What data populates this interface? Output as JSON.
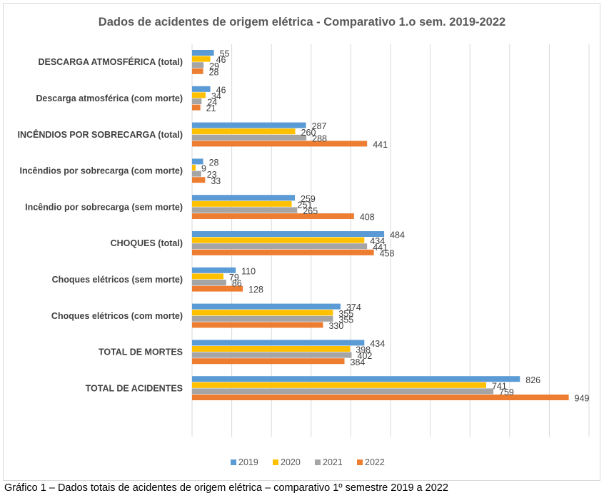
{
  "chart_data": {
    "type": "bar",
    "orientation": "horizontal",
    "title": "Dados de acidentes de origem elétrica - Comparativo 1.o sem. 2019-2022",
    "xlabel": "",
    "ylabel": "",
    "xlim": [
      0,
      1000
    ],
    "grid": true,
    "legend_position": "bottom",
    "categories": [
      "DESCARGA ATMOSFÉRICA (total)",
      "Descarga atmosférica (com morte)",
      "INCÊNDIOS POR SOBRECARGA (total)",
      "Incêndios por sobrecarga (com morte)",
      "Incêndio por sobrecarga (sem morte)",
      "CHOQUES (total)",
      "Choques elétricos (sem morte)",
      "Choques elétricos (com morte)",
      "TOTAL DE MORTES",
      "TOTAL DE ACIDENTES"
    ],
    "series": [
      {
        "name": "2019",
        "color": "#5b9bd5",
        "values": [
          55,
          46,
          287,
          28,
          259,
          484,
          110,
          374,
          434,
          826
        ]
      },
      {
        "name": "2020",
        "color": "#ffc000",
        "values": [
          46,
          34,
          260,
          9,
          251,
          434,
          79,
          355,
          398,
          741
        ]
      },
      {
        "name": "2021",
        "color": "#a5a5a5",
        "values": [
          29,
          24,
          288,
          23,
          265,
          441,
          86,
          355,
          402,
          759
        ]
      },
      {
        "name": "2022",
        "color": "#ed7d31",
        "values": [
          28,
          21,
          441,
          33,
          408,
          458,
          128,
          330,
          384,
          949
        ]
      }
    ]
  },
  "caption": "Gráfico 1 – Dados totais de acidentes de origem elétrica – comparativo 1º semestre 2019 a 2022"
}
